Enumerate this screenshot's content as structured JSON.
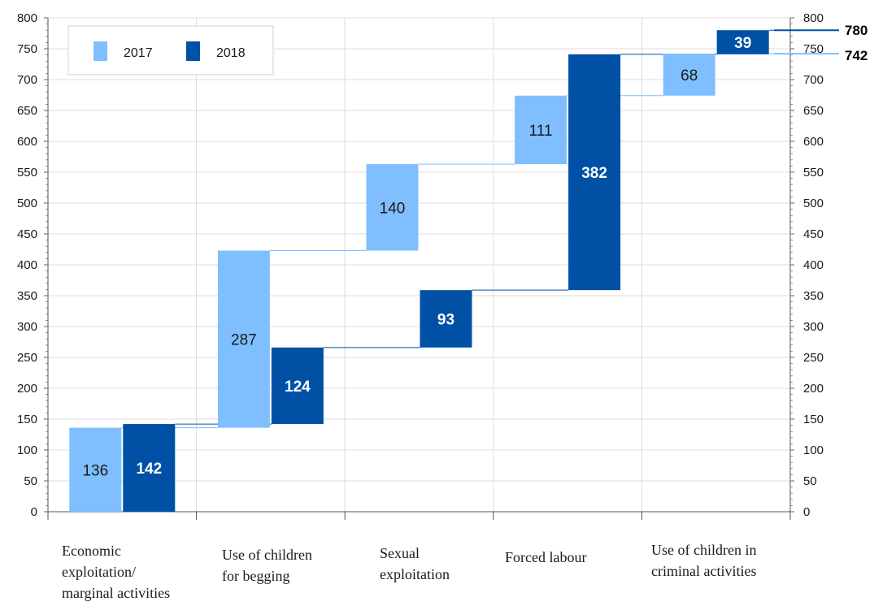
{
  "chart_data": {
    "type": "bar",
    "subtype": "waterfall",
    "categories": [
      "Economic\nexploitation/\nmarginal activities",
      "Use of children\nfor begging",
      "Sexual\nexploitation",
      "Forced labour",
      "Use of children in\ncriminal activities"
    ],
    "series": [
      {
        "name": "2017",
        "color": "#7fbfff",
        "values": [
          136,
          287,
          140,
          111,
          68
        ],
        "total": 742
      },
      {
        "name": "2018",
        "color": "#0050a5",
        "values": [
          142,
          124,
          93,
          382,
          39
        ],
        "total": 780
      }
    ],
    "ylim": [
      0,
      800
    ],
    "yticks": [
      0,
      50,
      100,
      150,
      200,
      250,
      300,
      350,
      400,
      450,
      500,
      550,
      600,
      650,
      700,
      750,
      800
    ],
    "grid": true,
    "legend_position": "top-left",
    "secondary_y_axis": true
  }
}
